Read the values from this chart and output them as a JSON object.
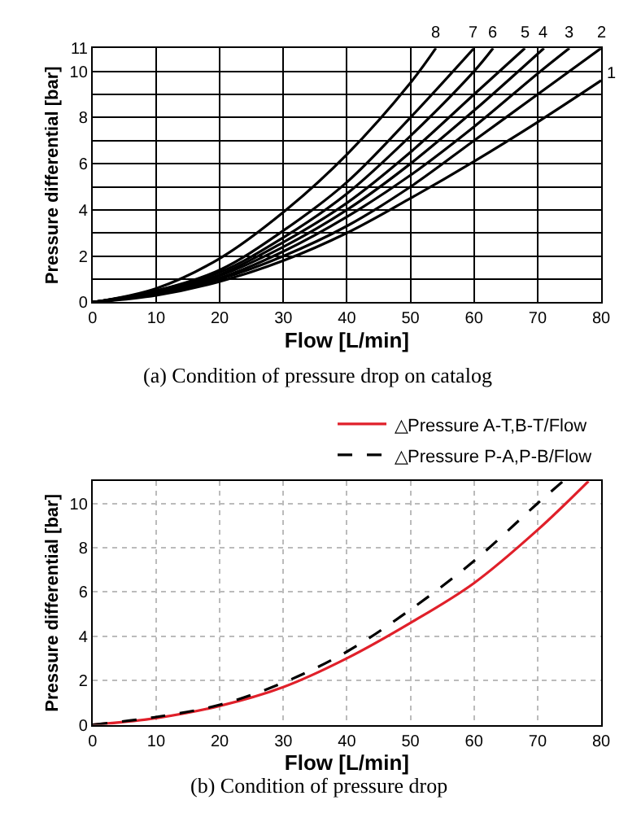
{
  "chart_data": [
    {
      "type": "line",
      "xlabel": "Flow [L/min]",
      "ylabel": "Pressure differential [bar]",
      "xlim": [
        0,
        80
      ],
      "ylim": [
        0,
        11
      ],
      "xticks": [
        0,
        10,
        20,
        30,
        40,
        50,
        60,
        70,
        80
      ],
      "yticks": [
        0,
        {
          "value": 1,
          "label": null
        },
        2,
        {
          "value": 3,
          "label": null
        },
        4,
        {
          "value": 5,
          "label": null
        },
        6,
        {
          "value": 7,
          "label": null
        },
        8,
        {
          "value": 9,
          "label": null
        },
        10,
        11
      ],
      "grid": true,
      "legend": false,
      "annotations": [
        "(a) Condition of pressure drop on catalog"
      ],
      "series": [
        {
          "name": "1",
          "color": "#000000",
          "x": [
            0,
            10,
            20,
            30,
            40,
            50,
            60,
            70,
            80
          ],
          "values": [
            0,
            0.3,
            0.9,
            1.8,
            3.0,
            4.5,
            6.1,
            7.8,
            9.6
          ]
        },
        {
          "name": "2",
          "color": "#000000",
          "x": [
            0,
            10,
            20,
            30,
            40,
            50,
            60,
            70,
            80
          ],
          "values": [
            0,
            0.35,
            1.0,
            2.0,
            3.3,
            5.0,
            7.0,
            9.0,
            11
          ]
        },
        {
          "name": "3",
          "color": "#000000",
          "x": [
            0,
            10,
            20,
            30,
            40,
            50,
            60,
            70,
            75
          ],
          "values": [
            0,
            0.4,
            1.05,
            2.2,
            3.7,
            5.5,
            7.6,
            9.9,
            11
          ]
        },
        {
          "name": "4",
          "color": "#000000",
          "x": [
            0,
            10,
            20,
            30,
            40,
            50,
            60,
            71
          ],
          "values": [
            0,
            0.4,
            1.15,
            2.4,
            4.0,
            6.0,
            8.3,
            11
          ]
        },
        {
          "name": "5",
          "color": "#000000",
          "x": [
            0,
            10,
            20,
            30,
            40,
            50,
            60,
            68
          ],
          "values": [
            0,
            0.45,
            1.2,
            2.6,
            4.3,
            6.5,
            9.0,
            11
          ]
        },
        {
          "name": "6",
          "color": "#000000",
          "x": [
            0,
            10,
            20,
            30,
            40,
            50,
            60,
            63
          ],
          "values": [
            0,
            0.5,
            1.3,
            2.8,
            4.7,
            7.2,
            10.0,
            11
          ]
        },
        {
          "name": "7",
          "color": "#000000",
          "x": [
            0,
            10,
            20,
            30,
            40,
            50,
            60
          ],
          "values": [
            0,
            0.5,
            1.4,
            3.1,
            5.2,
            8.0,
            11
          ]
        },
        {
          "name": "8",
          "color": "#000000",
          "x": [
            0,
            10,
            20,
            30,
            40,
            50,
            54
          ],
          "values": [
            0,
            0.6,
            1.9,
            3.9,
            6.4,
            9.5,
            11
          ]
        }
      ]
    },
    {
      "type": "line",
      "xlabel": "Flow [L/min]",
      "ylabel": "Pressure differential [bar]",
      "xlim": [
        0,
        80
      ],
      "ylim": [
        0,
        11
      ],
      "xticks": [
        0,
        10,
        20,
        30,
        40,
        50,
        60,
        70,
        80
      ],
      "yticks": [
        0,
        2,
        4,
        6,
        8,
        10
      ],
      "grid": true,
      "legend": "top right",
      "annotations": [
        "(b) Condition of pressure drop"
      ],
      "series": [
        {
          "name": "△Pressure A-T,B-T/Flow",
          "color": "#e0202a",
          "line_style": "solid",
          "x": [
            0,
            10,
            20,
            30,
            40,
            50,
            60,
            70,
            78
          ],
          "values": [
            0,
            0.3,
            0.85,
            1.7,
            3.0,
            4.6,
            6.4,
            8.8,
            11
          ]
        },
        {
          "name": "△Pressure P-A,P-B/Flow",
          "color": "#000000",
          "line_style": "dashed",
          "x": [
            0,
            10,
            20,
            30,
            40,
            50,
            60,
            70,
            74
          ],
          "values": [
            0,
            0.35,
            0.9,
            1.9,
            3.3,
            5.2,
            7.4,
            10.0,
            11
          ]
        }
      ]
    }
  ]
}
